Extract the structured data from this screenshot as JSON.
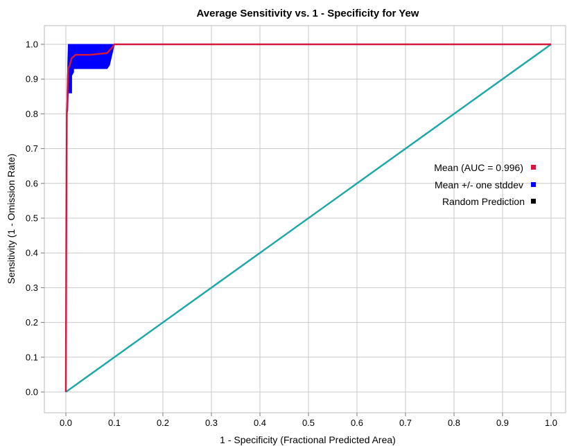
{
  "chart_data": {
    "type": "line",
    "title": "Average Sensitivity vs. 1 - Specificity for Yew",
    "xlabel": "1 - Specificity (Fractional Predicted Area)",
    "ylabel": "Sensitivity (1 - Omission Rate)",
    "xlim": [
      0,
      1
    ],
    "ylim": [
      0,
      1
    ],
    "x_ticks": [
      "0.0",
      "0.1",
      "0.2",
      "0.3",
      "0.4",
      "0.5",
      "0.6",
      "0.7",
      "0.8",
      "0.9",
      "1.0"
    ],
    "y_ticks": [
      "0.0",
      "0.1",
      "0.2",
      "0.3",
      "0.4",
      "0.5",
      "0.6",
      "0.7",
      "0.8",
      "0.9",
      "1.0"
    ],
    "grid": true,
    "legend_position": "right",
    "series": [
      {
        "name": "Mean (AUC = 0.996)",
        "color": "#d4183d",
        "x": [
          0,
          0.001,
          0.002,
          0.003,
          0.004,
          0.005,
          0.008,
          0.012,
          0.02,
          0.05,
          0.085,
          0.095,
          0.1,
          1.0
        ],
        "y": [
          0,
          0.5,
          0.8,
          0.83,
          0.9,
          0.93,
          0.94,
          0.96,
          0.97,
          0.97,
          0.975,
          0.99,
          1.0,
          1.0
        ]
      },
      {
        "name": "Mean +/- one stddev",
        "color": "#0000ff",
        "upper_x": [
          0.002,
          0.004,
          0.005,
          0.1,
          1.0
        ],
        "upper_y": [
          0.83,
          0.95,
          1.0,
          1.0,
          1.0
        ],
        "lower_x": [
          0.002,
          0.004,
          0.005,
          0.008,
          0.012,
          0.012,
          0.016,
          0.016,
          0.02,
          0.085,
          0.09,
          0.1,
          1.0
        ],
        "lower_y": [
          0.8,
          0.81,
          0.86,
          0.86,
          0.86,
          0.91,
          0.92,
          0.93,
          0.93,
          0.93,
          0.94,
          1.0,
          1.0
        ]
      },
      {
        "name": "Random Prediction",
        "color": "#20a8a8",
        "legend_color": "#000000",
        "x": [
          0,
          1
        ],
        "y": [
          0,
          1
        ]
      }
    ]
  }
}
